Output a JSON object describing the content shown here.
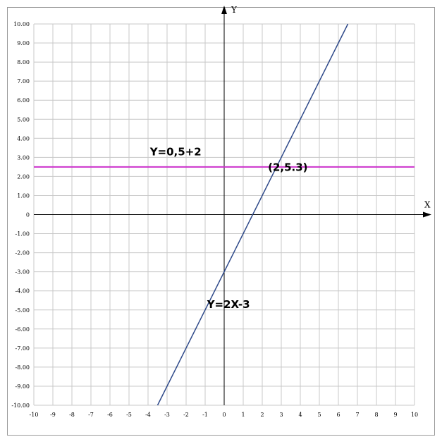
{
  "chart_data": {
    "type": "line",
    "xlabel": "X",
    "ylabel": "Y",
    "xlim": [
      -10,
      10
    ],
    "ylim": [
      -10,
      10
    ],
    "grid": true,
    "x_ticks": [
      -10,
      -9,
      -8,
      -7,
      -6,
      -5,
      -4,
      -3,
      -2,
      -1,
      0,
      1,
      2,
      3,
      4,
      5,
      6,
      7,
      8,
      9,
      10
    ],
    "x_tick_labels": [
      "-10",
      "-9",
      "-8",
      "-7",
      "-6",
      "-5",
      "-4",
      "-3",
      "-2",
      "-1",
      "0",
      "1",
      "2",
      "3",
      "4",
      "5",
      "6",
      "7",
      "8",
      "9",
      "10"
    ],
    "y_ticks": [
      10,
      9,
      8,
      7,
      6,
      5,
      4,
      3,
      2,
      1,
      0,
      -1,
      -2,
      -3,
      -4,
      -5,
      -6,
      -7,
      -8,
      -9,
      -10
    ],
    "y_tick_labels": [
      "10.00",
      "9.00",
      "8.00",
      "7.00",
      "6.00",
      "5.00",
      "4.00",
      "3.00",
      "2.00",
      "1.00",
      "0",
      "-1.00",
      "-2.00",
      "-3.00",
      "-4.00",
      "-5.00",
      "-6.00",
      "-7.00",
      "-8.00",
      "-9.00",
      "-10.00"
    ],
    "series": [
      {
        "type": "line",
        "color": "#2f4a8a",
        "slope": 2,
        "intercept": -3,
        "x_range": [
          -3.5,
          6.5
        ]
      },
      {
        "type": "hline",
        "color": "#cc33cc",
        "y": 2.5,
        "x_range": [
          -10,
          10
        ]
      }
    ],
    "annotations": [
      {
        "text": "Y=0,5+2",
        "x": -3.9,
        "y": 3.1
      },
      {
        "text": "(2,5.3)",
        "x": 2.3,
        "y": 2.3
      },
      {
        "text": "Y=2X-3",
        "x": -0.9,
        "y": -4.9
      }
    ]
  }
}
